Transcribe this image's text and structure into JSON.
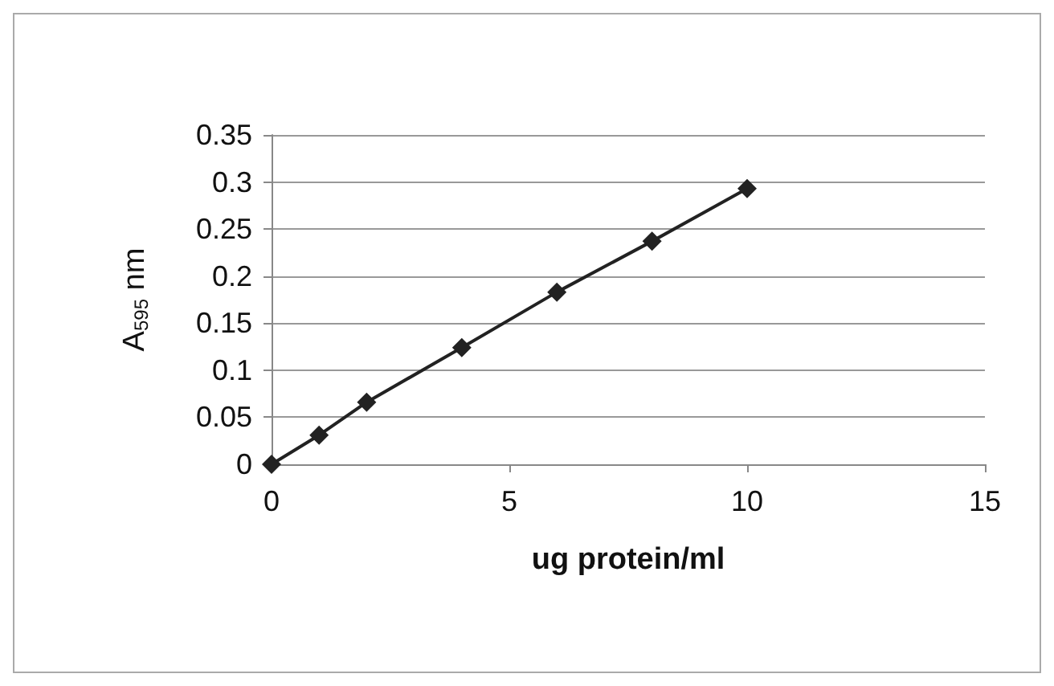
{
  "chart_data": {
    "type": "line",
    "xlabel": "ug protein/ml",
    "ylabel": "A$_{595}$ nm",
    "x": [
      0,
      1,
      2,
      4,
      6,
      8,
      10
    ],
    "series": [
      {
        "color": "#222222",
        "values": [
          0,
          0.031,
          0.066,
          0.124,
          0.183,
          0.237,
          0.293
        ]
      }
    ],
    "xlim": [
      0,
      15
    ],
    "xticks": [
      0,
      5,
      10,
      15
    ],
    "ylim": [
      0,
      0.35
    ],
    "yticks": [
      0,
      0.05,
      0.1,
      0.15,
      0.2,
      0.25,
      0.3,
      0.35
    ],
    "grid": "y",
    "marker": "diamond",
    "line_style": "solid"
  }
}
